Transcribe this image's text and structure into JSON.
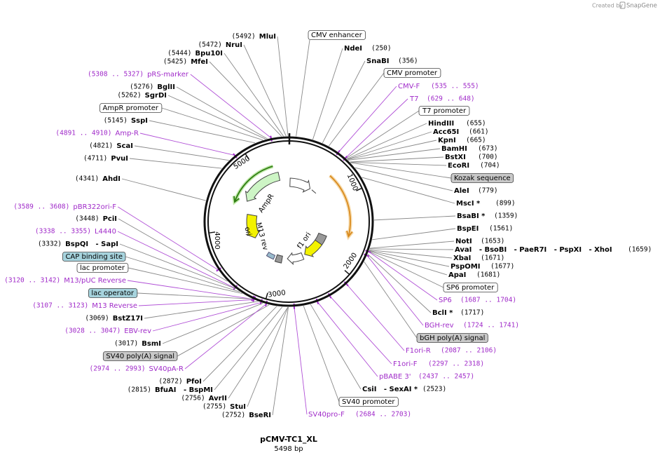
{
  "credit": "Created by",
  "brand": "SnapGene",
  "title": "pCMV-TC1_XL",
  "length": "5498 bp",
  "ring_labels": [
    1000,
    2000,
    3000,
    4000,
    5000
  ],
  "features": [
    "AmpR",
    "ori",
    "M13 rev",
    "f1 ori"
  ],
  "labels": [
    {
      "name": "CMV enhancer",
      "kind": "box"
    },
    {
      "name": "NdeI",
      "position": "(250)",
      "kind": "enzyme"
    },
    {
      "name": "SnaBI",
      "position": "(356)",
      "kind": "enzyme"
    },
    {
      "name": "CMV promoter",
      "kind": "box"
    },
    {
      "name": "CMV-F",
      "position": "(535 .. 555)",
      "kind": "primer"
    },
    {
      "name": "T7",
      "position": "(629 .. 648)",
      "kind": "primer"
    },
    {
      "name": "T7 promoter",
      "kind": "box"
    },
    {
      "name": "HindIII",
      "position": "(655)",
      "kind": "enzyme"
    },
    {
      "name": "Acc65I",
      "position": "(661)",
      "kind": "enzyme"
    },
    {
      "name": "KpnI",
      "position": "(665)",
      "kind": "enzyme"
    },
    {
      "name": "BamHI",
      "position": "(673)",
      "kind": "enzyme"
    },
    {
      "name": "BstXI",
      "position": "(700)",
      "kind": "enzyme"
    },
    {
      "name": "EcoRI",
      "position": "(704)",
      "kind": "enzyme"
    },
    {
      "name": "Kozak sequence",
      "kind": "shaded box"
    },
    {
      "name": "AleI",
      "position": "(779)",
      "kind": "enzyme"
    },
    {
      "name": "MscI *",
      "position": "(899)",
      "kind": "enzyme"
    },
    {
      "name": "BsaBI *",
      "position": "(1359)",
      "kind": "enzyme"
    },
    {
      "name": "BspEI",
      "position": "(1561)",
      "kind": "enzyme"
    },
    {
      "name": "NotI",
      "position": "(1653)",
      "kind": "enzyme"
    },
    {
      "name": "AvaI   - BsoBI   - PaeR7I   - PspXI   - XhoI",
      "position": "(1659)",
      "kind": "enzyme"
    },
    {
      "name": "XbaI",
      "position": "(1671)",
      "kind": "enzyme"
    },
    {
      "name": "PspOMI",
      "position": "(1677)",
      "kind": "enzyme"
    },
    {
      "name": "ApaI",
      "position": "(1681)",
      "kind": "enzyme"
    },
    {
      "name": "SP6 promoter",
      "kind": "box"
    },
    {
      "name": "SP6",
      "position": "(1687 .. 1704)",
      "kind": "primer"
    },
    {
      "name": "BclI *",
      "position": "(1717)",
      "kind": "enzyme"
    },
    {
      "name": "BGH-rev",
      "position": "(1724 .. 1741)",
      "kind": "primer"
    },
    {
      "name": "bGH poly(A) signal",
      "kind": "shaded box"
    },
    {
      "name": "F1ori-R",
      "position": "(2087 .. 2106)",
      "kind": "primer"
    },
    {
      "name": "F1ori-F",
      "position": "(2297 .. 2318)",
      "kind": "primer"
    },
    {
      "name": "pBABE 3'",
      "position": "(2437 .. 2457)",
      "kind": "primer"
    },
    {
      "name": "CsiI   - SexAI *",
      "position": "(2523)",
      "kind": "enzyme"
    },
    {
      "name": "SV40 promoter",
      "kind": "box"
    },
    {
      "name": "SV40pro-F",
      "position": "(2684 .. 2703)",
      "kind": "primer"
    },
    {
      "name": "MluI",
      "position": "(5492)",
      "kind": "enzyme"
    },
    {
      "name": "NruI",
      "position": "(5472)",
      "kind": "enzyme"
    },
    {
      "name": "Bpu10I",
      "position": "(5444)",
      "kind": "enzyme"
    },
    {
      "name": "MfeI",
      "position": "(5425)",
      "kind": "enzyme"
    },
    {
      "name": "pRS-marker",
      "position": "(5308 .. 5327)",
      "kind": "primer"
    },
    {
      "name": "BglII",
      "position": "(5276)",
      "kind": "enzyme"
    },
    {
      "name": "SgrDI",
      "position": "(5262)",
      "kind": "enzyme"
    },
    {
      "name": "AmpR promoter",
      "kind": "box"
    },
    {
      "name": "SspI",
      "position": "(5145)",
      "kind": "enzyme"
    },
    {
      "name": "Amp-R",
      "position": "(4891 .. 4910)",
      "kind": "primer"
    },
    {
      "name": "ScaI",
      "position": "(4821)",
      "kind": "enzyme"
    },
    {
      "name": "PvuI",
      "position": "(4711)",
      "kind": "enzyme"
    },
    {
      "name": "AhdI",
      "position": "(4341)",
      "kind": "enzyme"
    },
    {
      "name": "pBR322ori-F",
      "position": "(3589 .. 3608)",
      "kind": "primer"
    },
    {
      "name": "PciI",
      "position": "(3448)",
      "kind": "enzyme"
    },
    {
      "name": "L4440",
      "position": "(3338 .. 3355)",
      "kind": "primer"
    },
    {
      "name": "BspQI   - SapI",
      "position": "(3332)",
      "kind": "enzyme"
    },
    {
      "name": "CAP binding site",
      "kind": "blue box"
    },
    {
      "name": "lac promoter",
      "kind": "box"
    },
    {
      "name": "M13/pUC Reverse",
      "position": "(3120 .. 3142)",
      "kind": "primer"
    },
    {
      "name": "lac operator",
      "kind": "blue box"
    },
    {
      "name": "M13 Reverse",
      "position": "(3107 .. 3123)",
      "kind": "primer"
    },
    {
      "name": "BstZ17I",
      "position": "(3069)",
      "kind": "enzyme"
    },
    {
      "name": "EBV-rev",
      "position": "(3028 .. 3047)",
      "kind": "primer"
    },
    {
      "name": "BsmI",
      "position": "(3017)",
      "kind": "enzyme"
    },
    {
      "name": "SV40 poly(A) signal",
      "kind": "shaded box"
    },
    {
      "name": "SV40pA-R",
      "position": "(2974 .. 2993)",
      "kind": "primer"
    },
    {
      "name": "PfoI",
      "position": "(2872)",
      "kind": "enzyme"
    },
    {
      "name": "BfuAI   - BspMI",
      "position": "(2815)",
      "kind": "enzyme"
    },
    {
      "name": "AvrII",
      "position": "(2756)",
      "kind": "enzyme"
    },
    {
      "name": "StuI",
      "position": "(2755)",
      "kind": "enzyme"
    },
    {
      "name": "BseRI",
      "position": "(2752)",
      "kind": "enzyme"
    }
  ]
}
